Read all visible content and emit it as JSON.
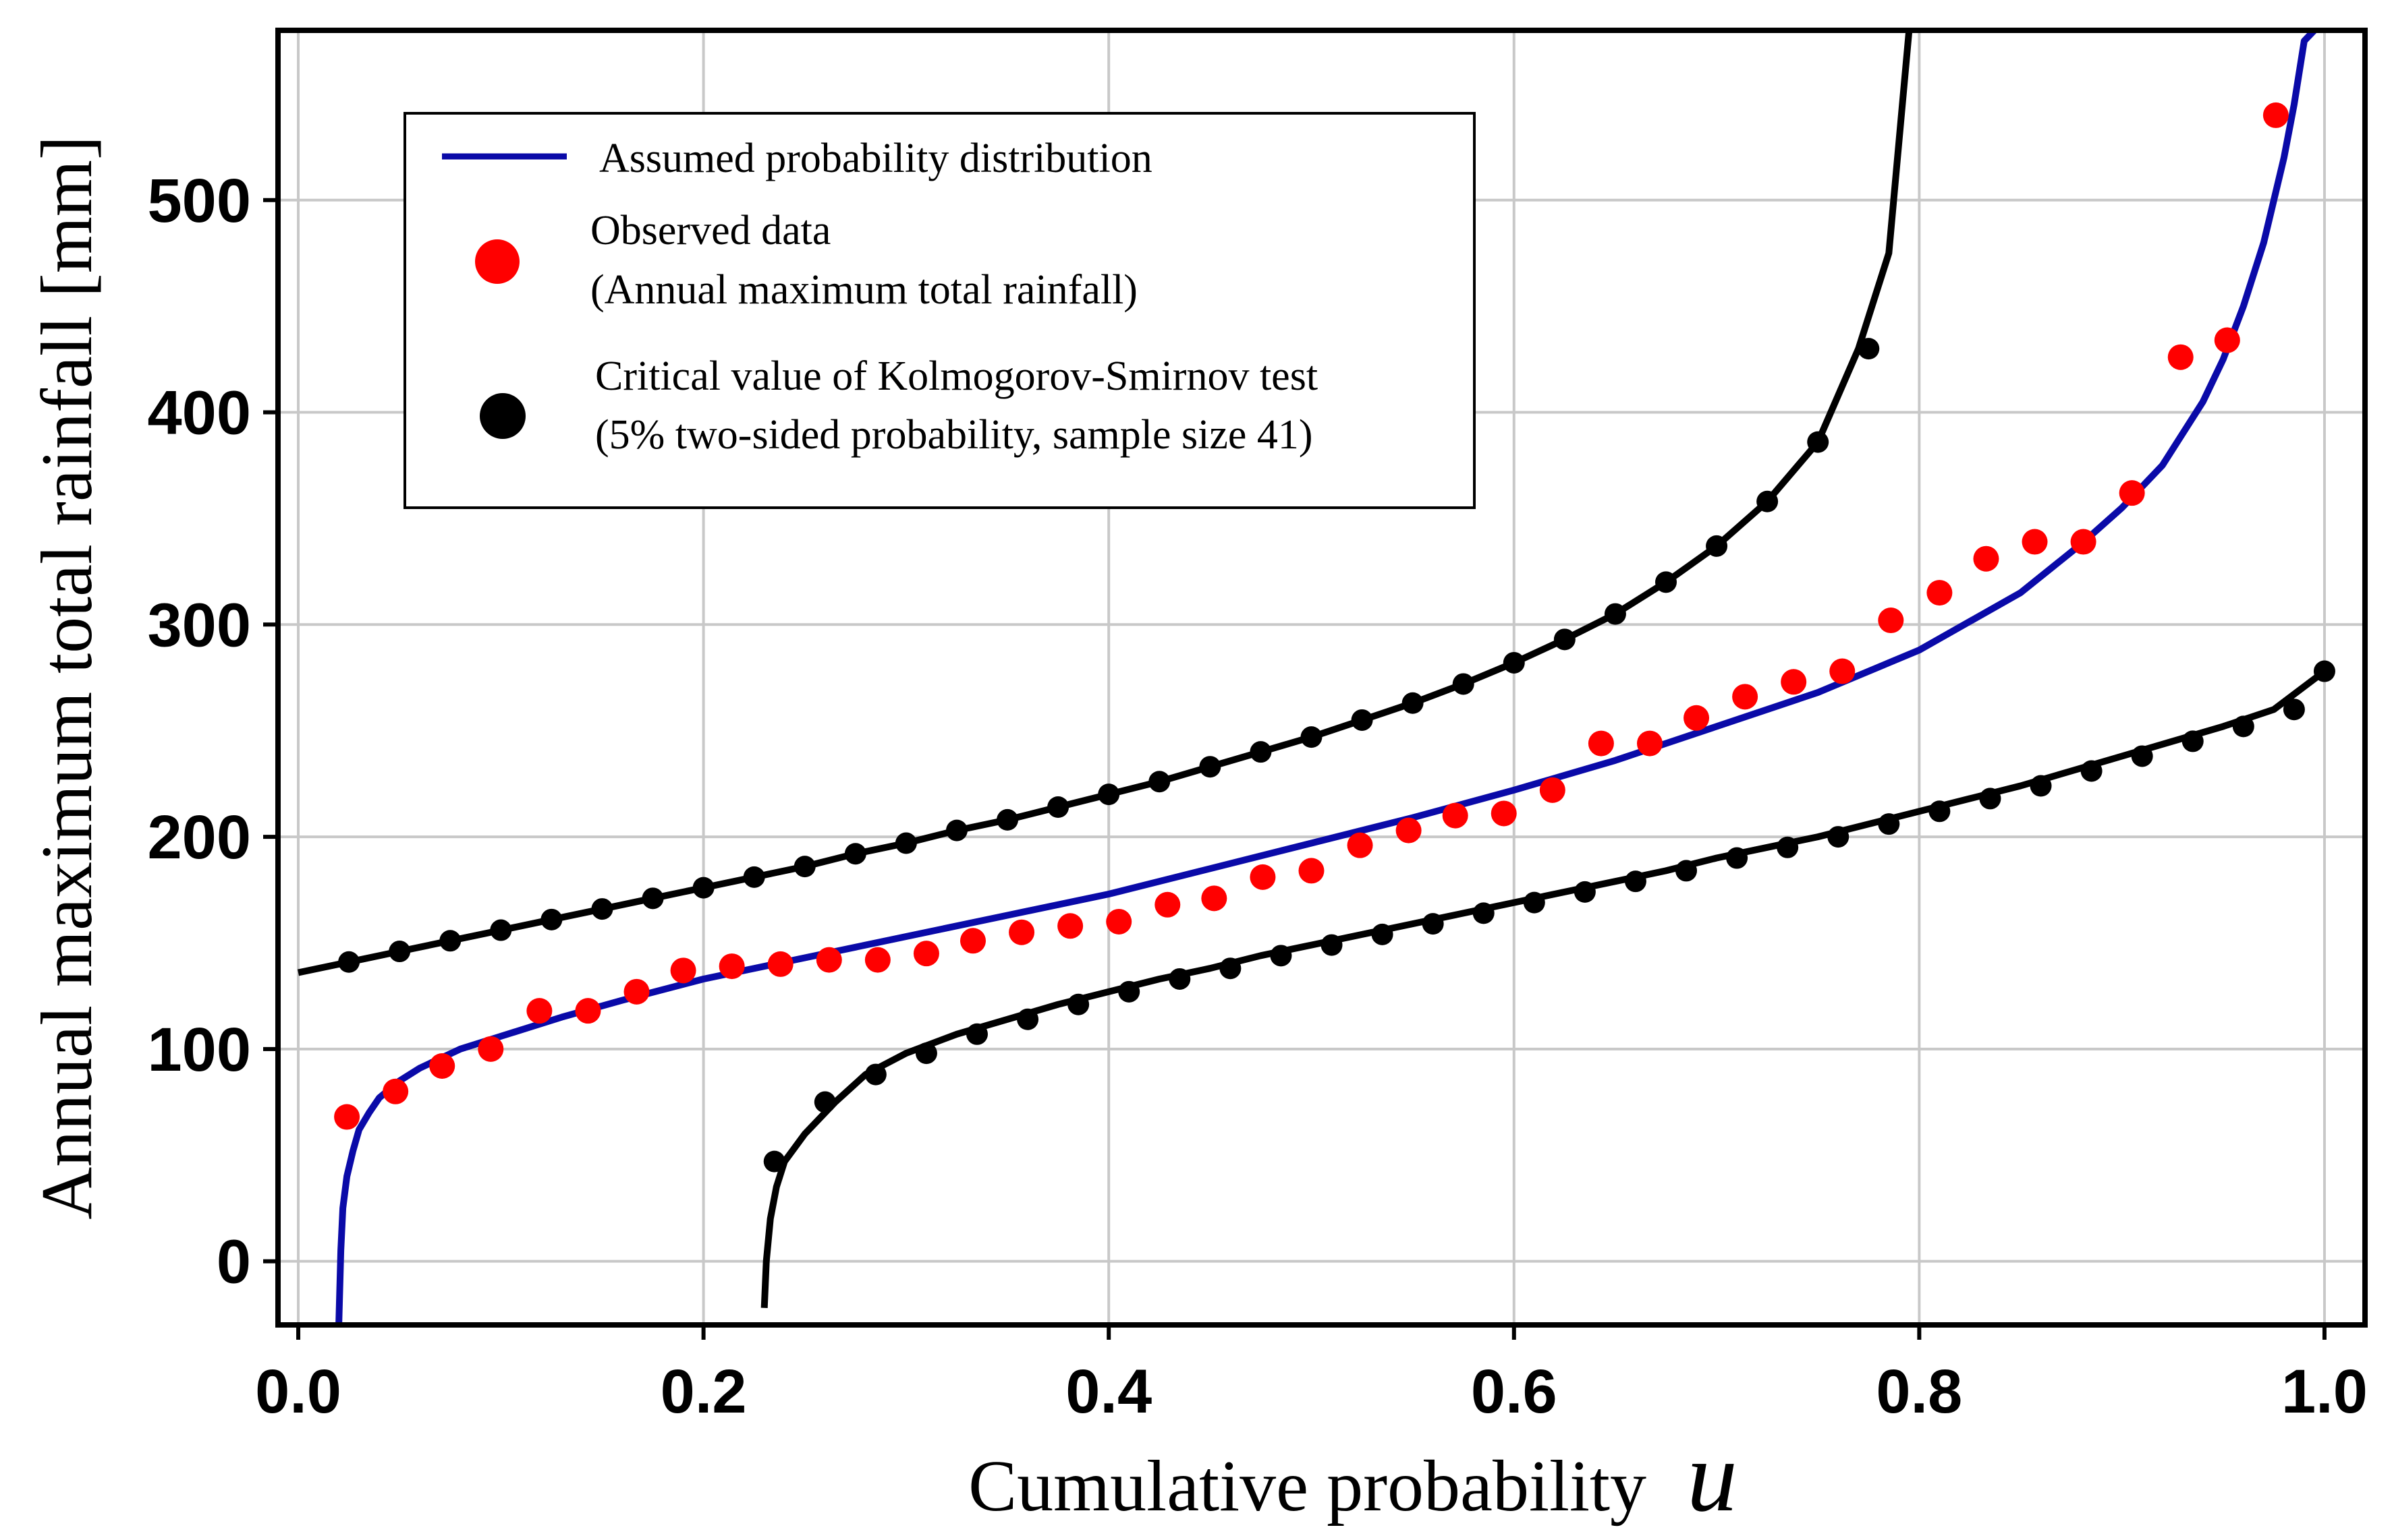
{
  "chart_data": {
    "type": "line",
    "title": "",
    "xlabel": "Cumulative probability",
    "xlabel_var": "u",
    "ylabel": "Annual maximum total rainfall [mm]",
    "xlim": [
      -0.01,
      1.02
    ],
    "ylim": [
      -30,
      580
    ],
    "xticks": [
      0.0,
      0.2,
      0.4,
      0.6,
      0.8,
      1.0
    ],
    "xtick_labels": [
      "0.0",
      "0.2",
      "0.4",
      "0.6",
      "0.8",
      "1.0"
    ],
    "yticks": [
      0,
      100,
      200,
      300,
      400,
      500
    ],
    "ytick_labels": [
      "0",
      "100",
      "200",
      "300",
      "400",
      "500"
    ],
    "grid": true,
    "legend_position": "top-left",
    "legend": [
      {
        "key": "distribution",
        "lines": [
          "Assumed probability distribution"
        ]
      },
      {
        "key": "observed",
        "lines": [
          "Observed data",
          "(Annual maximum total rainfall)"
        ]
      },
      {
        "key": "ks",
        "lines": [
          "Critical value of Kolmogorov-Smirnov test",
          "(5% two-sided probability, sample size 41)"
        ]
      }
    ],
    "colors": {
      "distribution": "#0a0aa8",
      "observed": "#ff0000",
      "ks": "#000000",
      "grid": "#c8c8c8"
    },
    "series": [
      {
        "name": "Assumed probability distribution",
        "kind": "line",
        "x": [
          0.02,
          0.021,
          0.022,
          0.024,
          0.027,
          0.03,
          0.035,
          0.04,
          0.05,
          0.06,
          0.08,
          0.1,
          0.13,
          0.16,
          0.2,
          0.25,
          0.3,
          0.35,
          0.4,
          0.45,
          0.5,
          0.55,
          0.6,
          0.65,
          0.7,
          0.75,
          0.8,
          0.85,
          0.88,
          0.9,
          0.92,
          0.94,
          0.95,
          0.96,
          0.97,
          0.98,
          0.985,
          0.99,
          0.995
        ],
        "y": [
          -30,
          5,
          25,
          40,
          52,
          62,
          70,
          77,
          85,
          91,
          100,
          106,
          115,
          123,
          133,
          143,
          153,
          163,
          173,
          185,
          197,
          209,
          222,
          236,
          252,
          268,
          288,
          315,
          338,
          355,
          375,
          405,
          425,
          450,
          480,
          520,
          545,
          575,
          580
        ]
      },
      {
        "name": "Observed data",
        "kind": "scatter",
        "x": [
          0.024,
          0.048,
          0.071,
          0.095,
          0.119,
          0.143,
          0.167,
          0.19,
          0.214,
          0.238,
          0.262,
          0.286,
          0.31,
          0.333,
          0.357,
          0.381,
          0.405,
          0.429,
          0.452,
          0.476,
          0.5,
          0.524,
          0.548,
          0.571,
          0.595,
          0.619,
          0.643,
          0.667,
          0.69,
          0.714,
          0.738,
          0.762,
          0.786,
          0.81,
          0.833,
          0.857,
          0.881,
          0.905,
          0.929,
          0.952,
          0.976
        ],
        "y": [
          68,
          80,
          92,
          100,
          118,
          118,
          127,
          137,
          139,
          140,
          142,
          142,
          145,
          151,
          155,
          158,
          160,
          168,
          171,
          181,
          184,
          196,
          203,
          210,
          211,
          222,
          244,
          244,
          256,
          266,
          273,
          278,
          302,
          315,
          331,
          339,
          339,
          362,
          426,
          434,
          540
        ]
      },
      {
        "name": "Critical value of Kolmogorov-Smirnov test (upper)",
        "kind": "line-markers",
        "x": [
          0.0,
          0.025,
          0.05,
          0.075,
          0.1,
          0.125,
          0.15,
          0.175,
          0.2,
          0.225,
          0.25,
          0.275,
          0.3,
          0.325,
          0.35,
          0.375,
          0.4,
          0.425,
          0.45,
          0.475,
          0.5,
          0.525,
          0.55,
          0.575,
          0.6,
          0.625,
          0.65,
          0.675,
          0.7,
          0.725,
          0.75,
          0.77,
          0.785,
          0.795
        ],
        "y": [
          136,
          141,
          146,
          151,
          156,
          161,
          166,
          171,
          176,
          181,
          186,
          192,
          197,
          203,
          208,
          214,
          220,
          226,
          233,
          240,
          247,
          255,
          263,
          272,
          282,
          293,
          305,
          320,
          337,
          358,
          386,
          430,
          475,
          580
        ],
        "marker_x": [
          0.025,
          0.05,
          0.075,
          0.1,
          0.125,
          0.15,
          0.175,
          0.2,
          0.225,
          0.25,
          0.275,
          0.3,
          0.325,
          0.35,
          0.375,
          0.4,
          0.425,
          0.45,
          0.475,
          0.5,
          0.525,
          0.55,
          0.575,
          0.6,
          0.625,
          0.65,
          0.675,
          0.7,
          0.725,
          0.75,
          0.775
        ],
        "marker_y": [
          141,
          146,
          151,
          156,
          161,
          166,
          171,
          176,
          181,
          186,
          192,
          197,
          203,
          208,
          214,
          220,
          226,
          233,
          240,
          247,
          255,
          263,
          272,
          282,
          293,
          305,
          320,
          337,
          358,
          386,
          430
        ]
      },
      {
        "name": "Critical value of Kolmogorov-Smirnov test (lower)",
        "kind": "line-markers",
        "x": [
          0.23,
          0.231,
          0.233,
          0.236,
          0.24,
          0.25,
          0.265,
          0.28,
          0.3,
          0.325,
          0.35,
          0.375,
          0.4,
          0.425,
          0.45,
          0.475,
          0.5,
          0.525,
          0.55,
          0.575,
          0.6,
          0.625,
          0.65,
          0.675,
          0.7,
          0.725,
          0.75,
          0.775,
          0.8,
          0.825,
          0.85,
          0.875,
          0.9,
          0.925,
          0.95,
          0.975,
          1.0
        ],
        "y": [
          -22,
          0,
          20,
          35,
          47,
          60,
          75,
          88,
          98,
          107,
          114,
          121,
          127,
          133,
          138,
          144,
          149,
          154,
          159,
          164,
          169,
          174,
          179,
          184,
          190,
          195,
          200,
          206,
          212,
          218,
          224,
          231,
          238,
          245,
          252,
          260,
          278
        ],
        "marker_x": [
          0.235,
          0.26,
          0.285,
          0.31,
          0.335,
          0.36,
          0.385,
          0.41,
          0.435,
          0.46,
          0.485,
          0.51,
          0.535,
          0.56,
          0.585,
          0.61,
          0.635,
          0.66,
          0.685,
          0.71,
          0.735,
          0.76,
          0.785,
          0.81,
          0.835,
          0.86,
          0.885,
          0.91,
          0.935,
          0.96,
          0.985,
          1.0
        ],
        "marker_y": [
          47,
          75,
          88,
          98,
          107,
          114,
          121,
          127,
          133,
          138,
          144,
          149,
          154,
          159,
          164,
          169,
          174,
          179,
          184,
          190,
          195,
          200,
          206,
          212,
          218,
          224,
          231,
          238,
          245,
          252,
          260,
          278
        ]
      }
    ]
  }
}
